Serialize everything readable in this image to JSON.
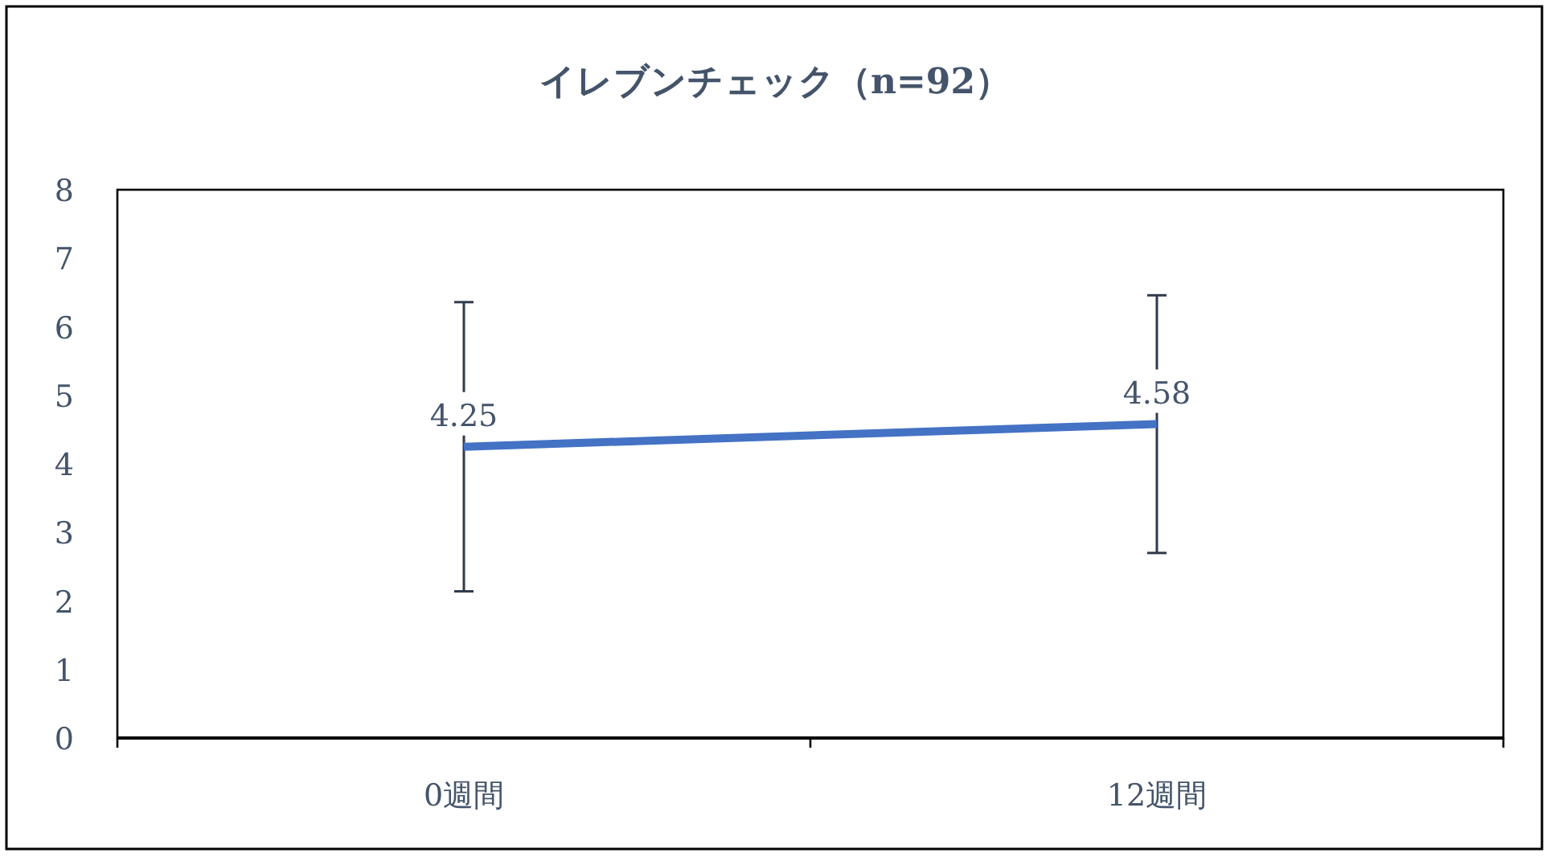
{
  "chart_data": {
    "type": "line",
    "title": "イレブンチェック（n=92）",
    "categories": [
      "0週間",
      "12週間"
    ],
    "values": [
      4.25,
      4.58
    ],
    "errors": [
      2.11,
      1.88
    ],
    "color": "#4472c4",
    "ylim": [
      0,
      8
    ],
    "yticks": [
      0,
      1,
      2,
      3,
      4,
      5,
      6,
      7,
      8
    ],
    "data_labels": true,
    "grid": false
  }
}
